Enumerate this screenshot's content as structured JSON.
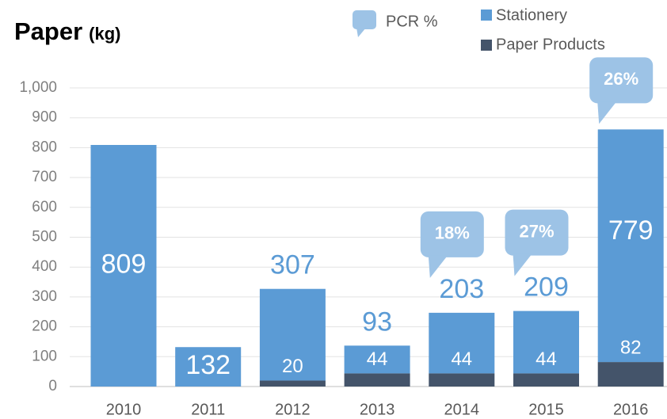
{
  "chart_data": {
    "type": "bar",
    "stacked": true,
    "title": "Paper",
    "unit": "(kg)",
    "categories": [
      "2010",
      "2011",
      "2012",
      "2013",
      "2014",
      "2015",
      "2016"
    ],
    "series": [
      {
        "name": "Paper Products",
        "color": "#44546a",
        "values": [
          null,
          null,
          20,
          44,
          44,
          44,
          82
        ]
      },
      {
        "name": "Stationery",
        "color": "#5b9bd5",
        "values": [
          809,
          132,
          307,
          93,
          203,
          209,
          779
        ]
      }
    ],
    "pcr": {
      "name": "PCR %",
      "color": "#9dc3e6",
      "values": [
        null,
        null,
        null,
        null,
        18,
        27,
        26
      ],
      "value_labels": [
        null,
        null,
        null,
        null,
        "18%",
        "27%",
        "26%"
      ]
    },
    "ylim": [
      0,
      1000
    ],
    "yticks": [
      0,
      100,
      200,
      300,
      400,
      500,
      600,
      700,
      800,
      900,
      {
        "value": 1000,
        "label": "1,000"
      }
    ],
    "grid": true
  }
}
